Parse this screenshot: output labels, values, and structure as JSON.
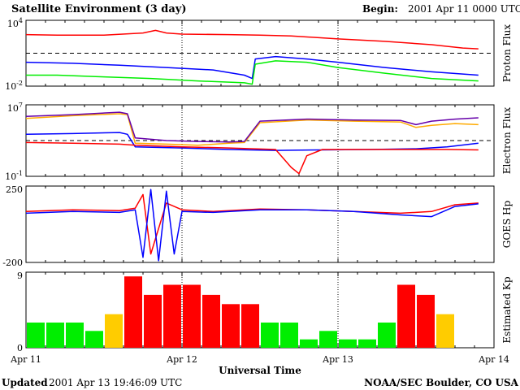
{
  "header": {
    "title": "Satellite Environment (3 day)",
    "begin_label": "Begin:",
    "begin_value": "2001 Apr 11 0000 UTC"
  },
  "footer": {
    "updated_label": "Updated",
    "updated_value": "2001 Apr 13 19:46:09 UTC",
    "credit": "NOAA/SEC Boulder, CO USA"
  },
  "x_axis": {
    "label": "Universal Time",
    "ticks": [
      "Apr 11",
      "Apr 12",
      "Apr 13",
      "Apr 14"
    ],
    "range_days": [
      0,
      3
    ]
  },
  "colors": {
    "red": "#ff0000",
    "blue": "#0000ff",
    "green": "#00ee00",
    "orange": "#ffaa00",
    "purple": "#6600aa",
    "kp_green": "#00ee00",
    "kp_yellow": "#ffcc00",
    "kp_red": "#ff0000"
  },
  "chart_data": [
    {
      "type": "line",
      "name": "proton",
      "ylabel": "Proton Flux",
      "y_scale": "log",
      "ylim": [
        0.01,
        10000
      ],
      "y_tick_labels": [
        "10^4",
        "10^-2"
      ],
      "threshold": 10,
      "series": [
        {
          "color": "red",
          "x": [
            0,
            0.2,
            0.5,
            0.75,
            0.83,
            0.9,
            1.0,
            1.3,
            1.5,
            1.7,
            2.0,
            2.3,
            2.6,
            2.8,
            2.9
          ],
          "y": [
            500,
            450,
            450,
            700,
            1200,
            700,
            550,
            500,
            450,
            380,
            200,
            120,
            60,
            30,
            25
          ]
        },
        {
          "color": "blue",
          "x": [
            0,
            0.3,
            0.6,
            0.9,
            1.2,
            1.4,
            1.45,
            1.47,
            1.6,
            1.8,
            2.0,
            2.3,
            2.6,
            2.9
          ],
          "y": [
            1.5,
            1.2,
            0.8,
            0.5,
            0.3,
            0.1,
            0.05,
            3,
            5,
            3,
            1.5,
            0.5,
            0.2,
            0.1
          ]
        },
        {
          "color": "green",
          "x": [
            0,
            0.2,
            0.5,
            0.8,
            1.1,
            1.4,
            1.45,
            1.47,
            1.6,
            1.8,
            2.0,
            2.3,
            2.6,
            2.9
          ],
          "y": [
            0.1,
            0.1,
            0.07,
            0.05,
            0.03,
            0.02,
            0.015,
            1,
            2,
            1.5,
            0.5,
            0.15,
            0.05,
            0.03
          ]
        }
      ]
    },
    {
      "type": "line",
      "name": "electron",
      "ylabel": "Electron Flux",
      "y_scale": "log",
      "ylim": [
        0.1,
        10000000
      ],
      "y_tick_labels": [
        "10^7",
        "10^-1"
      ],
      "threshold": 1000,
      "series": [
        {
          "color": "orange",
          "x": [
            0,
            0.3,
            0.6,
            0.65,
            0.7,
            0.9,
            1.1,
            1.3,
            1.4,
            1.5,
            1.8,
            2.1,
            2.4,
            2.5,
            2.6,
            2.75,
            2.9
          ],
          "y": [
            300000,
            600000,
            1000000,
            800000,
            500,
            400,
            300,
            500,
            600,
            100000,
            200000,
            150000,
            120000,
            30000,
            50000,
            80000,
            60000
          ]
        },
        {
          "color": "purple",
          "x": [
            0,
            0.3,
            0.6,
            0.65,
            0.7,
            0.9,
            1.1,
            1.3,
            1.4,
            1.5,
            1.8,
            2.1,
            2.4,
            2.5,
            2.6,
            2.75,
            2.9
          ],
          "y": [
            500000,
            800000,
            1500000,
            1000000,
            2000,
            1000,
            800,
            700,
            800,
            150000,
            250000,
            200000,
            180000,
            60000,
            150000,
            250000,
            350000
          ]
        },
        {
          "color": "blue",
          "x": [
            0,
            0.3,
            0.6,
            0.65,
            0.7,
            1.0,
            1.3,
            1.6,
            1.9,
            2.2,
            2.5,
            2.7,
            2.9
          ],
          "y": [
            5000,
            6000,
            8000,
            5000,
            200,
            150,
            100,
            80,
            90,
            100,
            120,
            200,
            500
          ]
        },
        {
          "color": "red",
          "x": [
            0,
            0.3,
            0.6,
            0.7,
            1.0,
            1.3,
            1.6,
            1.7,
            1.75,
            1.8,
            1.9,
            2.2,
            2.5,
            2.7,
            2.9
          ],
          "y": [
            600,
            500,
            400,
            300,
            200,
            150,
            100,
            1,
            0.2,
            20,
            100,
            100,
            100,
            100,
            90
          ]
        }
      ]
    },
    {
      "type": "line",
      "name": "hp",
      "ylabel": "GOES Hp",
      "y_scale": "linear",
      "ylim": [
        -200,
        250
      ],
      "y_tick_labels": [
        "250",
        "-200"
      ],
      "series": [
        {
          "color": "red",
          "x": [
            0,
            0.3,
            0.6,
            0.7,
            0.75,
            0.8,
            0.9,
            1.0,
            1.2,
            1.5,
            1.8,
            2.1,
            2.4,
            2.6,
            2.75,
            2.9
          ],
          "y": [
            100,
            110,
            105,
            120,
            200,
            -150,
            150,
            110,
            100,
            115,
            110,
            100,
            90,
            100,
            140,
            150
          ]
        },
        {
          "color": "blue",
          "x": [
            0,
            0.3,
            0.6,
            0.7,
            0.75,
            0.8,
            0.85,
            0.9,
            0.95,
            1.0,
            1.2,
            1.5,
            1.8,
            2.1,
            2.4,
            2.6,
            2.75,
            2.9
          ],
          "y": [
            90,
            100,
            95,
            110,
            -170,
            230,
            -190,
            220,
            -150,
            100,
            95,
            110,
            110,
            100,
            80,
            70,
            130,
            145
          ]
        }
      ]
    },
    {
      "type": "bar",
      "name": "kp",
      "ylabel": "Estimated Kp",
      "ylim": [
        0,
        9
      ],
      "y_tick_labels": [
        "9",
        "0"
      ],
      "bar_hours": 3,
      "values": [
        3,
        3,
        3,
        2,
        4,
        8.5,
        6.3,
        7.5,
        7.5,
        6.3,
        5.2,
        5.2,
        3,
        3,
        1,
        2,
        1,
        1,
        3,
        7.5,
        6.3,
        4
      ],
      "colors": [
        "kp_green",
        "kp_green",
        "kp_green",
        "kp_green",
        "kp_yellow",
        "kp_red",
        "kp_red",
        "kp_red",
        "kp_red",
        "kp_red",
        "kp_red",
        "kp_red",
        "kp_green",
        "kp_green",
        "kp_green",
        "kp_green",
        "kp_green",
        "kp_green",
        "kp_green",
        "kp_red",
        "kp_red",
        "kp_yellow"
      ]
    }
  ]
}
